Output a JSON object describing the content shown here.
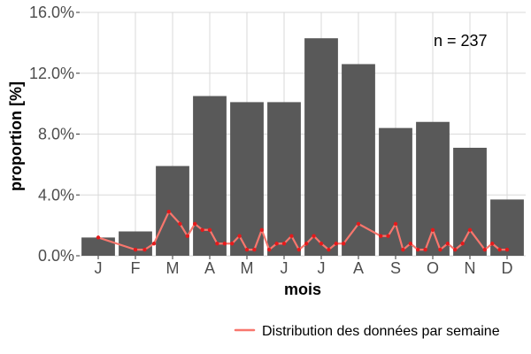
{
  "chart_data": {
    "type": "bar",
    "categories": [
      "J",
      "F",
      "M",
      "A",
      "M",
      "J",
      "J",
      "A",
      "S",
      "O",
      "N",
      "D"
    ],
    "values": [
      1.2,
      1.6,
      5.9,
      10.5,
      10.1,
      10.1,
      14.3,
      12.6,
      8.4,
      8.8,
      7.1,
      3.7
    ],
    "xlabel": "mois",
    "ylabel": "proportion [%]",
    "ylim": [
      0,
      16
    ],
    "yticks": [
      0,
      4,
      8,
      12,
      16
    ],
    "ytick_labels": [
      "0.0%",
      "4.0%",
      "8.0%",
      "12.0%",
      "16.0%"
    ],
    "grid": true,
    "annotation": "n = 237",
    "legend": {
      "position": "bottom",
      "entries": [
        {
          "label": "Distribution des données par semaine"
        }
      ]
    },
    "series": [
      {
        "name": "Distribution des données par semaine",
        "type": "line",
        "color": "#f8766d",
        "marker_color": "#e41a1c",
        "x": [
          0.0,
          1.0,
          1.25,
          1.5,
          1.9,
          2.2,
          2.4,
          2.6,
          2.8,
          3.0,
          3.2,
          3.4,
          3.6,
          3.8,
          4.0,
          4.2,
          4.4,
          4.6,
          4.8,
          5.0,
          5.2,
          5.4,
          5.6,
          5.8,
          6.0,
          6.2,
          6.4,
          6.6,
          7.0,
          7.6,
          7.8,
          8.0,
          8.2,
          8.4,
          8.6,
          8.8,
          9.0,
          9.2,
          9.4,
          9.6,
          9.8,
          10.0,
          10.4,
          10.6,
          10.8,
          11.0
        ],
        "values": [
          1.2,
          0.4,
          0.4,
          0.8,
          2.9,
          2.1,
          1.3,
          2.1,
          1.7,
          1.7,
          0.8,
          0.8,
          0.8,
          1.3,
          0.4,
          0.4,
          1.7,
          0.4,
          0.8,
          0.8,
          1.3,
          0.4,
          0.8,
          1.3,
          0.8,
          0.4,
          0.8,
          0.8,
          2.1,
          1.3,
          1.3,
          2.1,
          0.4,
          0.8,
          0.4,
          0.4,
          1.7,
          0.4,
          0.8,
          0.4,
          0.8,
          1.7,
          0.4,
          0.8,
          0.4,
          0.4
        ]
      }
    ],
    "colors": {
      "bar": "#595959",
      "grid": "#d9d9d9",
      "line": "#f8766d",
      "points": "#e41a1c",
      "axis_text": "#4d4d4d"
    }
  }
}
